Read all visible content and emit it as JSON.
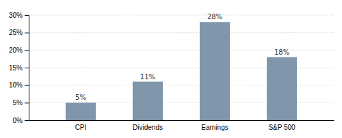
{
  "chart_data": {
    "type": "bar",
    "categories": [
      "CPI",
      "Dividends",
      "Earnings",
      "S&P 500"
    ],
    "values": [
      5,
      11,
      28,
      18
    ],
    "value_labels": [
      "5%",
      "11%",
      "28%",
      "18%"
    ],
    "data_labels": true,
    "color": "#7f96ab",
    "ylim": [
      0,
      30
    ],
    "yticks": [
      {
        "value": 0,
        "label": "0%"
      },
      {
        "value": 5,
        "label": "5%"
      },
      {
        "value": 10,
        "label": "10%"
      },
      {
        "value": 15,
        "label": "15%"
      },
      {
        "value": 20,
        "label": "20%"
      },
      {
        "value": 25,
        "label": "25%"
      },
      {
        "value": 30,
        "label": "30%"
      }
    ],
    "grid": true
  }
}
